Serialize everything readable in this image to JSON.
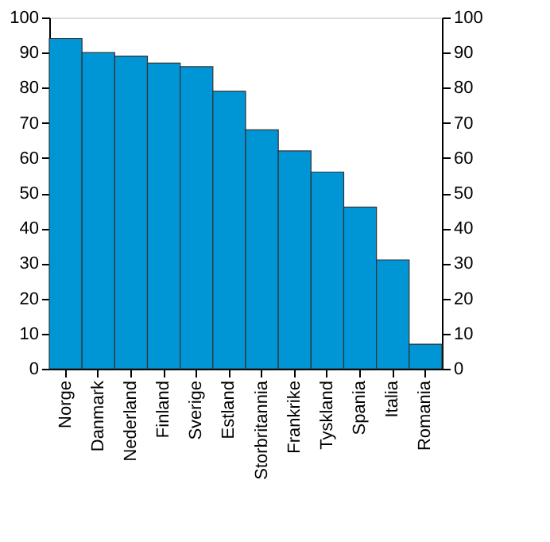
{
  "chart_data": {
    "type": "bar",
    "categories": [
      "Norge",
      "Danmark",
      "Nederland",
      "Finland",
      "Sverige",
      "Estland",
      "Storbritannia",
      "Frankrike",
      "Tyskland",
      "Spania",
      "Italia",
      "Romania"
    ],
    "values": [
      94,
      90,
      89,
      87,
      86,
      79,
      68,
      62,
      56,
      46,
      31,
      7
    ],
    "color": "#0096d6",
    "ylim": [
      0,
      100
    ],
    "yticks": [
      0,
      10,
      20,
      30,
      40,
      50,
      60,
      70,
      80,
      90,
      100
    ],
    "y2lim": [
      0,
      100
    ],
    "y2ticks": [
      0,
      10,
      20,
      30,
      40,
      50,
      60,
      70,
      80,
      90,
      100
    ],
    "grid": false
  }
}
